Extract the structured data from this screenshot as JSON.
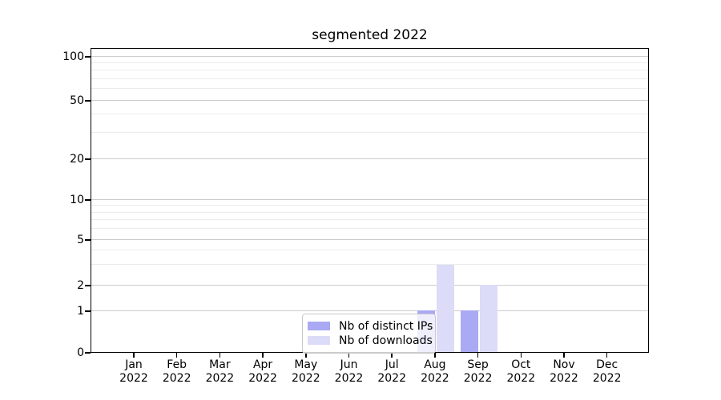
{
  "chart_data": {
    "type": "bar",
    "title": "segmented 2022",
    "categories": [
      "Jan",
      "Feb",
      "Mar",
      "Apr",
      "May",
      "Jun",
      "Jul",
      "Aug",
      "Sep",
      "Oct",
      "Nov",
      "Dec"
    ],
    "category_year": "2022",
    "series": [
      {
        "name": "Nb of distinct IPs",
        "color": "#a9a9f4",
        "values": [
          0,
          0,
          0,
          0,
          0,
          0,
          0,
          1,
          1,
          0,
          0,
          0
        ]
      },
      {
        "name": "Nb of downloads",
        "color": "#dcdcf8",
        "values": [
          0,
          0,
          0,
          0,
          0,
          0,
          0,
          3,
          2,
          0,
          0,
          0
        ]
      }
    ],
    "y_axis": {
      "scale": "symlog",
      "ylim": [
        0,
        110
      ],
      "major_ticks": [
        0,
        1,
        2,
        5,
        10,
        20,
        50,
        100
      ],
      "minor_ticks": [
        3,
        4,
        6,
        7,
        8,
        9,
        30,
        40,
        60,
        70,
        80,
        90
      ],
      "anchors": [
        [
          0,
          0
        ],
        [
          1,
          0.1365
        ],
        [
          2,
          0.2205
        ],
        [
          5,
          0.3701
        ],
        [
          10,
          0.5013
        ],
        [
          20,
          0.6352
        ],
        [
          50,
          0.8268
        ],
        [
          100,
          0.9711
        ]
      ]
    },
    "legend": {
      "position": "lower center",
      "entries": [
        "Nb of distinct IPs",
        "Nb of downloads"
      ]
    },
    "grid": {
      "major": true,
      "minor": true
    },
    "colors": {
      "grid_major": "#cccccc",
      "grid_minor": "#ececec",
      "axis": "#000000",
      "background": "#ffffff"
    }
  }
}
